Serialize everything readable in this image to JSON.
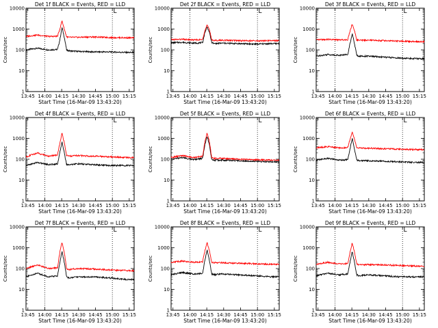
{
  "figure": {
    "title_suffix": "BLACK = Events, RED = LLD",
    "xlabel": "Start Time (16-Mar-09 13:43:20)",
    "ylabel": "Counts/sec",
    "corner_mark": "L",
    "x_ticks": [
      "13:45",
      "14:00",
      "14:15",
      "14:30",
      "14:45",
      "15:00",
      "15:15"
    ],
    "y_ticks": [
      "1",
      "10",
      "100",
      "1000",
      "10000"
    ]
  },
  "chart_data": [
    {
      "type": "line",
      "title": "Det 1f BLACK = Events, RED = LLD",
      "x_unit": "minutes after 13:43:20",
      "xlim": [
        0,
        96
      ],
      "ylim": [
        1,
        10000
      ],
      "y_scale": "log",
      "series": [
        {
          "name": "Events",
          "color": "#000000",
          "x": [
            0,
            10,
            20,
            28,
            30,
            32,
            34,
            36,
            38,
            45,
            60,
            75,
            90
          ],
          "y": [
            100,
            120,
            100,
            105,
            300,
            1200,
            400,
            100,
            90,
            85,
            80,
            80,
            75
          ]
        },
        {
          "name": "LLD",
          "color": "#ff0000",
          "x": [
            0,
            10,
            20,
            28,
            30,
            32,
            34,
            36,
            38,
            45,
            60,
            75,
            90
          ],
          "y": [
            440,
            520,
            440,
            450,
            1000,
            2500,
            1000,
            430,
            400,
            400,
            420,
            390,
            380
          ]
        }
      ]
    },
    {
      "type": "line",
      "title": "Det 2f BLACK = Events, RED = LLD",
      "x_unit": "minutes after 13:43:20",
      "xlim": [
        0,
        96
      ],
      "ylim": [
        1,
        10000
      ],
      "y_scale": "log",
      "series": [
        {
          "name": "Events",
          "color": "#000000",
          "x": [
            0,
            10,
            20,
            28,
            30,
            32,
            34,
            36,
            38,
            45,
            60,
            75,
            90
          ],
          "y": [
            220,
            230,
            210,
            220,
            700,
            1300,
            700,
            230,
            200,
            210,
            200,
            190,
            200
          ]
        },
        {
          "name": "LLD",
          "color": "#ff0000",
          "x": [
            0,
            10,
            20,
            28,
            30,
            32,
            34,
            36,
            38,
            45,
            60,
            75,
            90
          ],
          "y": [
            310,
            320,
            300,
            310,
            900,
            1600,
            900,
            320,
            280,
            290,
            280,
            270,
            280
          ]
        }
      ]
    },
    {
      "type": "line",
      "title": "Det 3f BLACK = Events, RED = LLD",
      "x_unit": "minutes after 13:43:20",
      "xlim": [
        0,
        96
      ],
      "ylim": [
        1,
        10000
      ],
      "y_scale": "log",
      "series": [
        {
          "name": "Events",
          "color": "#000000",
          "x": [
            0,
            10,
            20,
            28,
            30,
            32,
            34,
            36,
            38,
            45,
            60,
            75,
            90
          ],
          "y": [
            50,
            60,
            55,
            60,
            200,
            600,
            200,
            55,
            50,
            50,
            45,
            40,
            38
          ]
        },
        {
          "name": "LLD",
          "color": "#ff0000",
          "x": [
            0,
            10,
            20,
            28,
            30,
            32,
            34,
            36,
            38,
            45,
            60,
            75,
            90
          ],
          "y": [
            300,
            320,
            300,
            310,
            800,
            1800,
            800,
            300,
            290,
            290,
            280,
            260,
            250
          ]
        }
      ]
    },
    {
      "type": "line",
      "title": "Det 4f BLACK = Events, RED = LLD",
      "x_unit": "minutes after 13:43:20",
      "xlim": [
        0,
        96
      ],
      "ylim": [
        1,
        10000
      ],
      "y_scale": "log",
      "series": [
        {
          "name": "Events",
          "color": "#000000",
          "x": [
            0,
            10,
            20,
            28,
            30,
            32,
            34,
            36,
            38,
            45,
            60,
            75,
            90
          ],
          "y": [
            50,
            70,
            55,
            60,
            200,
            700,
            200,
            55,
            55,
            60,
            55,
            50,
            50
          ]
        },
        {
          "name": "LLD",
          "color": "#ff0000",
          "x": [
            0,
            10,
            20,
            28,
            30,
            32,
            34,
            36,
            38,
            45,
            60,
            75,
            90
          ],
          "y": [
            130,
            200,
            140,
            160,
            600,
            1800,
            600,
            150,
            140,
            150,
            140,
            130,
            120
          ]
        }
      ]
    },
    {
      "type": "line",
      "title": "Det 5f BLACK = Events, RED = LLD",
      "x_unit": "minutes after 13:43:20",
      "xlim": [
        0,
        96
      ],
      "ylim": [
        1,
        10000
      ],
      "y_scale": "log",
      "series": [
        {
          "name": "Events",
          "color": "#000000",
          "x": [
            0,
            10,
            20,
            28,
            30,
            32,
            34,
            36,
            38,
            45,
            60,
            75,
            90
          ],
          "y": [
            100,
            120,
            95,
            110,
            500,
            1300,
            500,
            95,
            90,
            90,
            85,
            80,
            75
          ]
        },
        {
          "name": "LLD",
          "color": "#ff0000",
          "x": [
            0,
            10,
            20,
            28,
            30,
            32,
            34,
            36,
            38,
            45,
            60,
            75,
            90
          ],
          "y": [
            120,
            150,
            120,
            140,
            700,
            1800,
            700,
            120,
            110,
            110,
            100,
            95,
            90
          ]
        }
      ]
    },
    {
      "type": "line",
      "title": "Det 6f BLACK = Events, RED = LLD",
      "x_unit": "minutes after 13:43:20",
      "xlim": [
        0,
        96
      ],
      "ylim": [
        1,
        10000
      ],
      "y_scale": "log",
      "series": [
        {
          "name": "Events",
          "color": "#000000",
          "x": [
            0,
            10,
            20,
            28,
            30,
            32,
            34,
            36,
            38,
            45,
            60,
            75,
            90
          ],
          "y": [
            90,
            110,
            90,
            95,
            300,
            1000,
            300,
            90,
            85,
            85,
            80,
            75,
            70
          ]
        },
        {
          "name": "LLD",
          "color": "#ff0000",
          "x": [
            0,
            10,
            20,
            28,
            30,
            32,
            34,
            36,
            38,
            45,
            60,
            75,
            90
          ],
          "y": [
            350,
            400,
            350,
            360,
            900,
            2000,
            900,
            360,
            340,
            340,
            320,
            300,
            290
          ]
        }
      ]
    },
    {
      "type": "line",
      "title": "Det 7f BLACK = Events, RED = LLD",
      "x_unit": "minutes after 13:43:20",
      "xlim": [
        0,
        96
      ],
      "ylim": [
        1,
        10000
      ],
      "y_scale": "log",
      "series": [
        {
          "name": "Events",
          "color": "#000000",
          "x": [
            0,
            10,
            20,
            28,
            30,
            32,
            34,
            36,
            38,
            45,
            60,
            75,
            90
          ],
          "y": [
            40,
            60,
            40,
            45,
            200,
            650,
            200,
            40,
            35,
            40,
            40,
            35,
            30
          ]
        },
        {
          "name": "LLD",
          "color": "#ff0000",
          "x": [
            0,
            10,
            20,
            28,
            30,
            32,
            34,
            36,
            38,
            45,
            60,
            75,
            90
          ],
          "y": [
            100,
            150,
            100,
            110,
            600,
            1800,
            600,
            100,
            90,
            100,
            95,
            85,
            80
          ]
        }
      ]
    },
    {
      "type": "line",
      "title": "Det 8f BLACK = Events, RED = LLD",
      "x_unit": "minutes after 13:43:20",
      "xlim": [
        0,
        96
      ],
      "ylim": [
        1,
        10000
      ],
      "y_scale": "log",
      "series": [
        {
          "name": "Events",
          "color": "#000000",
          "x": [
            0,
            10,
            20,
            28,
            30,
            32,
            34,
            36,
            38,
            45,
            60,
            75,
            90
          ],
          "y": [
            50,
            65,
            55,
            60,
            250,
            800,
            250,
            55,
            50,
            55,
            50,
            45,
            40
          ]
        },
        {
          "name": "LLD",
          "color": "#ff0000",
          "x": [
            0,
            10,
            20,
            28,
            30,
            32,
            34,
            36,
            38,
            45,
            60,
            75,
            90
          ],
          "y": [
            200,
            230,
            200,
            210,
            700,
            1800,
            700,
            200,
            190,
            190,
            180,
            170,
            160
          ]
        }
      ]
    },
    {
      "type": "line",
      "title": "Det 9f BLACK = Events, RED = LLD",
      "x_unit": "minutes after 13:43:20",
      "xlim": [
        0,
        96
      ],
      "ylim": [
        1,
        10000
      ],
      "y_scale": "log",
      "series": [
        {
          "name": "Events",
          "color": "#000000",
          "x": [
            0,
            10,
            20,
            28,
            30,
            32,
            34,
            36,
            38,
            45,
            60,
            75,
            90
          ],
          "y": [
            45,
            60,
            50,
            55,
            200,
            650,
            200,
            50,
            45,
            50,
            45,
            40,
            40
          ]
        },
        {
          "name": "LLD",
          "color": "#ff0000",
          "x": [
            0,
            10,
            20,
            28,
            30,
            32,
            34,
            36,
            38,
            45,
            60,
            75,
            90
          ],
          "y": [
            160,
            200,
            165,
            170,
            600,
            1700,
            600,
            165,
            150,
            155,
            150,
            140,
            130
          ]
        }
      ]
    }
  ]
}
